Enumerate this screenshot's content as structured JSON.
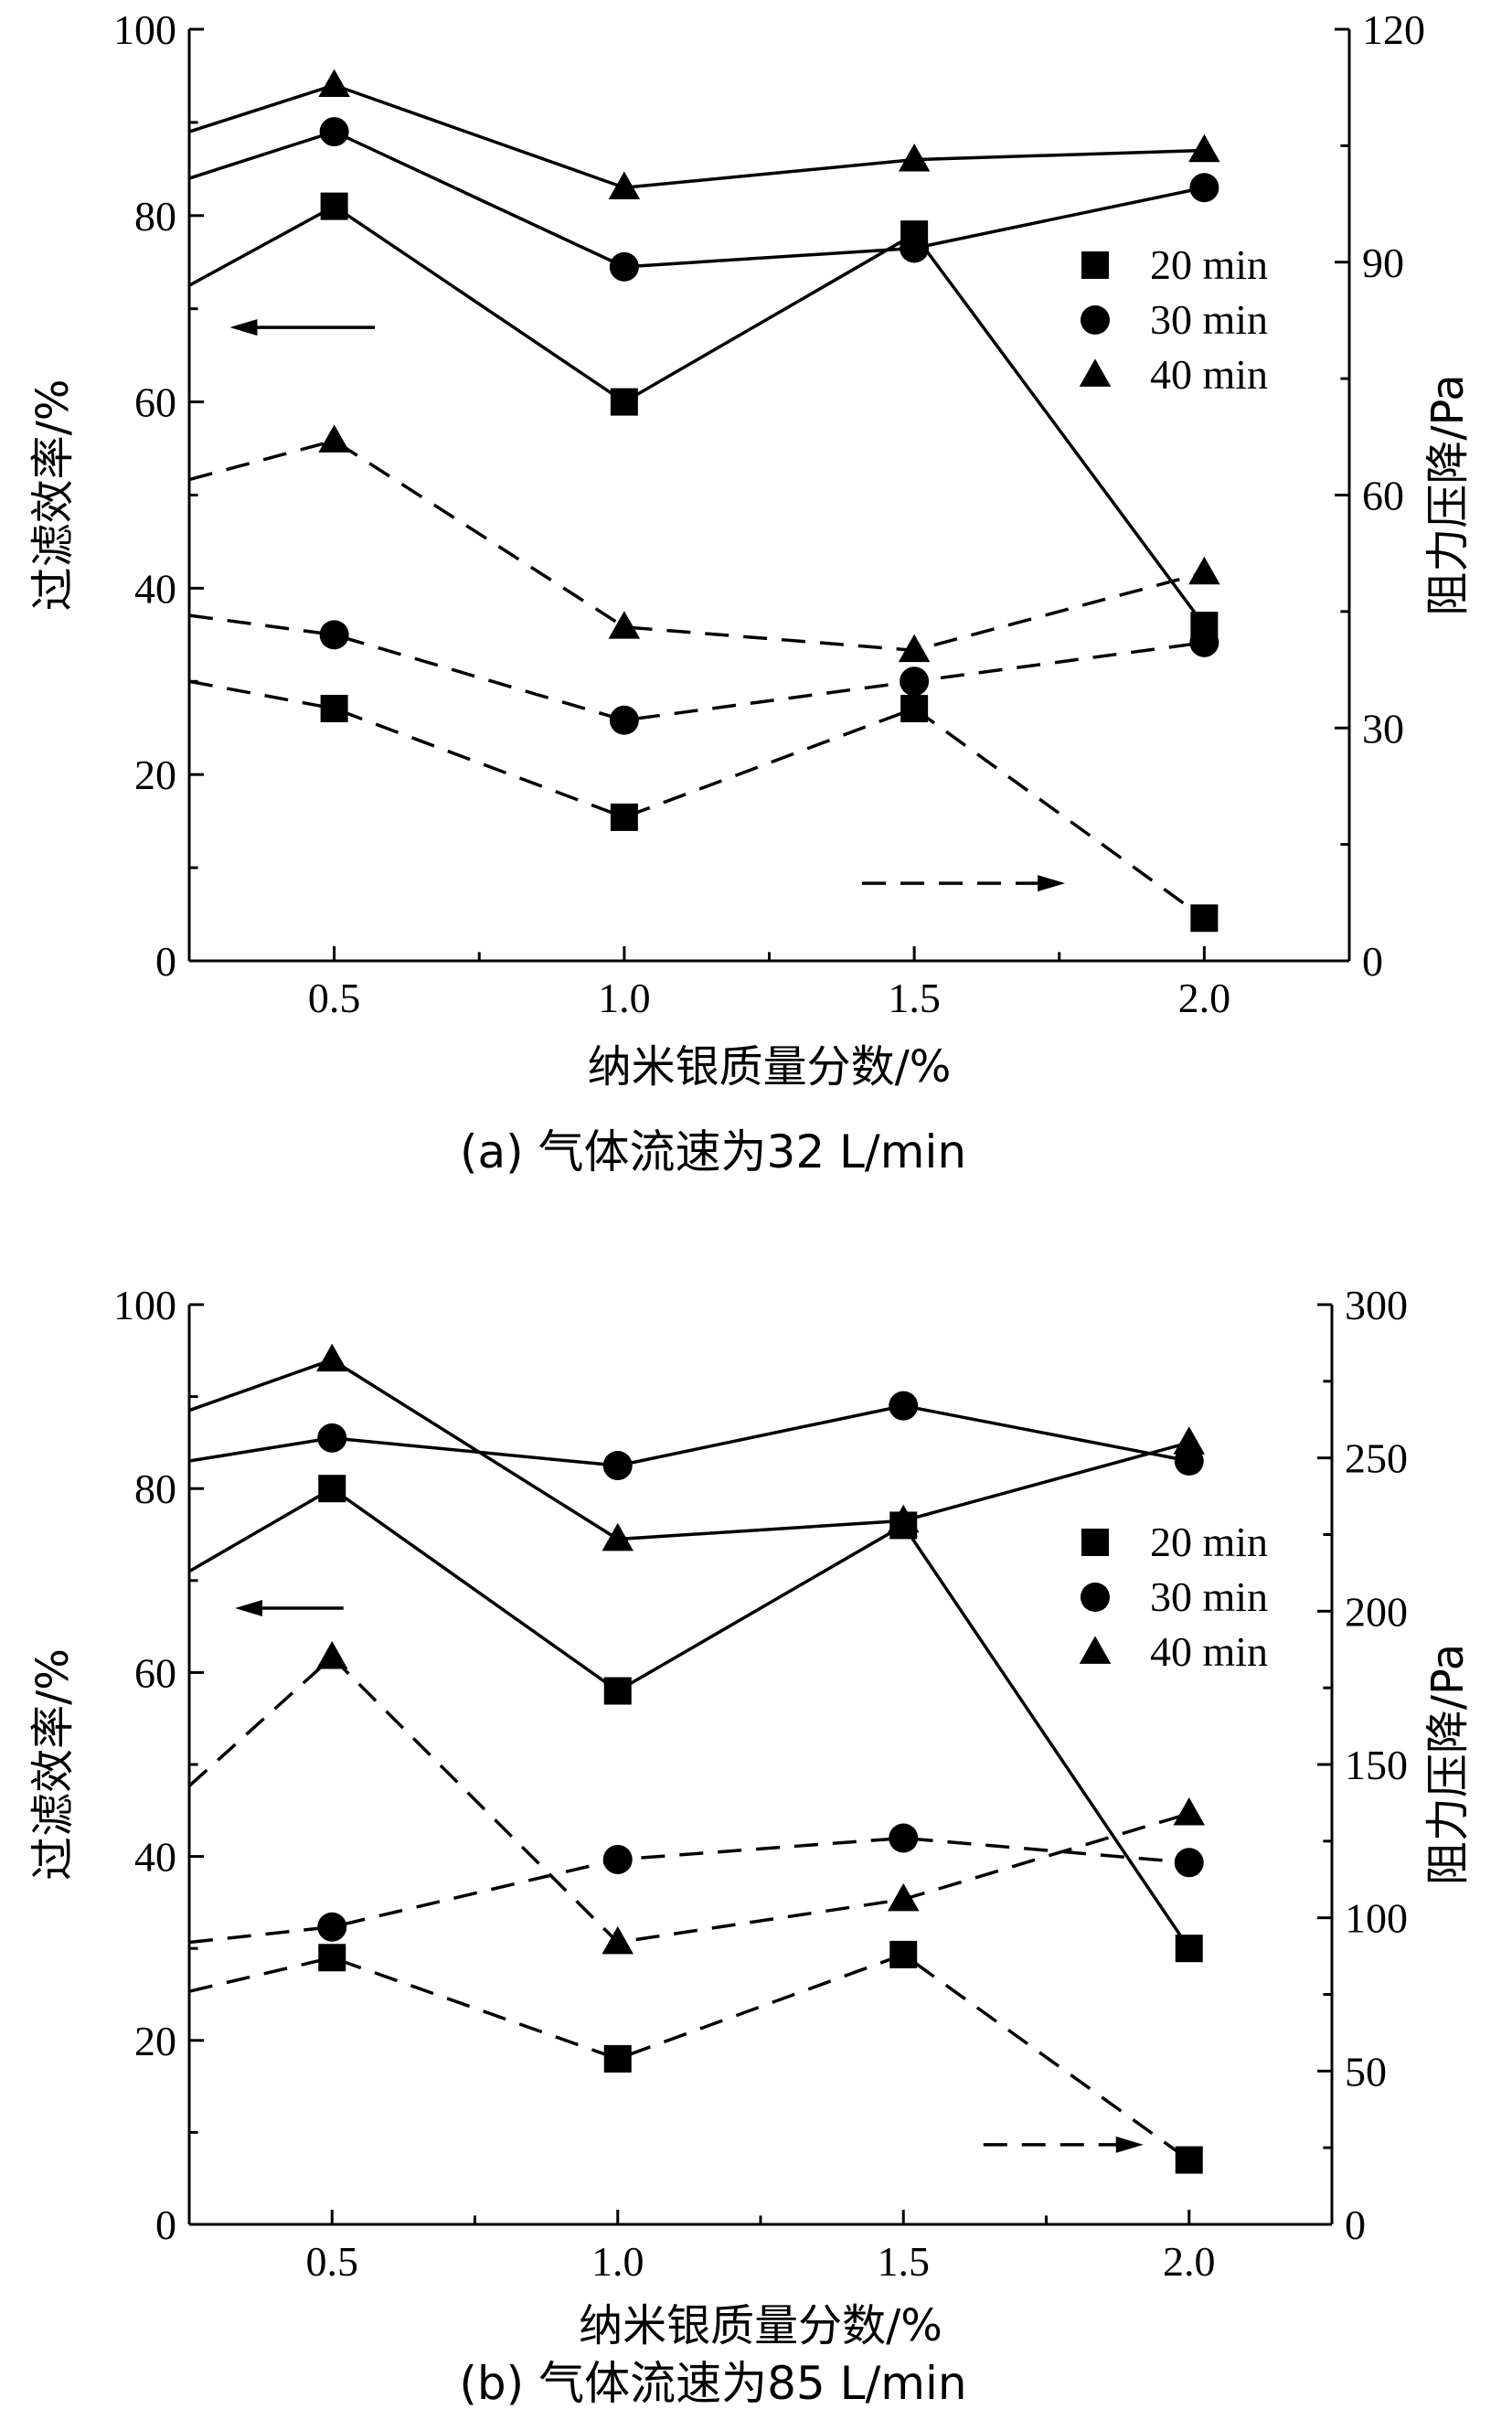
{
  "chart_data": [
    {
      "type": "line",
      "caption": "(a) 气体流速为32 L/min",
      "xlabel": "纳米银质量分数/%",
      "ylabel_left": "过滤效率/%",
      "ylabel_right": "阻力压降/Pa",
      "x_ticks": [
        "0.5",
        "1.0",
        "1.5",
        "2.0"
      ],
      "xlim": [
        0.25,
        2.25
      ],
      "ylim_left": [
        0,
        100
      ],
      "yticks_left": [
        0,
        20,
        40,
        60,
        80,
        100
      ],
      "ylim_right": [
        0,
        120
      ],
      "yticks_right": [
        0,
        30,
        60,
        90,
        120
      ],
      "legend": [
        {
          "marker": "square",
          "label": "20 min"
        },
        {
          "marker": "circle",
          "label": "30 min"
        },
        {
          "marker": "triangle",
          "label": "40 min"
        }
      ],
      "series": [
        {
          "name": "20 min",
          "axis": "left",
          "style": "solid",
          "marker": "square",
          "x": [
            0.25,
            0.5,
            1.0,
            1.5,
            2.0
          ],
          "values": [
            72.5,
            81,
            60,
            78,
            36
          ],
          "marked": [
            false,
            true,
            true,
            true,
            true
          ]
        },
        {
          "name": "30 min",
          "axis": "left",
          "style": "solid",
          "marker": "circle",
          "x": [
            0.25,
            0.5,
            1.0,
            1.5,
            2.0
          ],
          "values": [
            84,
            89,
            74.5,
            76.5,
            83
          ],
          "marked": [
            false,
            true,
            true,
            true,
            true
          ]
        },
        {
          "name": "40 min",
          "axis": "left",
          "style": "solid",
          "marker": "triangle",
          "x": [
            0.25,
            0.5,
            1.0,
            1.5,
            2.0
          ],
          "values": [
            89,
            94,
            83,
            86,
            87
          ],
          "marked": [
            false,
            true,
            true,
            true,
            true
          ]
        },
        {
          "name": "20 min",
          "axis": "right",
          "style": "dashed",
          "marker": "square",
          "x": [
            0.25,
            0.5,
            1.0,
            1.5,
            2.0
          ],
          "values": [
            36,
            32.5,
            18.5,
            32.5,
            5.5
          ],
          "marked": [
            false,
            true,
            true,
            true,
            true
          ]
        },
        {
          "name": "30 min",
          "axis": "right",
          "style": "dashed",
          "marker": "circle",
          "x": [
            0.25,
            0.5,
            1.0,
            1.5,
            2.0
          ],
          "values": [
            44.5,
            42,
            31,
            36,
            41
          ],
          "marked": [
            false,
            true,
            true,
            true,
            true
          ]
        },
        {
          "name": "40 min",
          "axis": "right",
          "style": "dashed",
          "marker": "triangle",
          "x": [
            0.25,
            0.5,
            1.0,
            1.5,
            2.0
          ],
          "values": [
            62,
            67,
            43,
            40,
            50
          ],
          "marked": [
            false,
            true,
            true,
            true,
            true
          ]
        }
      ],
      "arrows": [
        {
          "direction": "left",
          "axis": "left",
          "style": "solid",
          "x": [
            0.32,
            0.57
          ],
          "value": 68
        },
        {
          "direction": "right",
          "axis": "right",
          "style": "dashed",
          "x": [
            1.41,
            1.76
          ],
          "value": 10
        }
      ]
    },
    {
      "type": "line",
      "caption": "(b) 气体流速为85 L/min",
      "xlabel": "纳米银质量分数/%",
      "ylabel_left": "过滤效率/%",
      "ylabel_right": "阻力压降/Pa",
      "x_ticks": [
        "0.5",
        "1.0",
        "1.5",
        "2.0"
      ],
      "xlim": [
        0.25,
        2.25
      ],
      "ylim_left": [
        0,
        100
      ],
      "yticks_left": [
        0,
        20,
        40,
        60,
        80,
        100
      ],
      "ylim_right": [
        0,
        300
      ],
      "yticks_right": [
        0,
        50,
        100,
        150,
        200,
        250,
        300
      ],
      "legend": [
        {
          "marker": "square",
          "label": "20 min"
        },
        {
          "marker": "circle",
          "label": "30 min"
        },
        {
          "marker": "triangle",
          "label": "40 min"
        }
      ],
      "series": [
        {
          "name": "20 min",
          "axis": "left",
          "style": "solid",
          "marker": "square",
          "x": [
            0.25,
            0.5,
            1.0,
            1.5,
            2.0
          ],
          "values": [
            71,
            80,
            58,
            76,
            30
          ],
          "marked": [
            false,
            true,
            true,
            true,
            true
          ]
        },
        {
          "name": "30 min",
          "axis": "left",
          "style": "solid",
          "marker": "circle",
          "x": [
            0.25,
            0.5,
            1.0,
            1.5,
            2.0
          ],
          "values": [
            83,
            85.5,
            82.5,
            89,
            83
          ],
          "marked": [
            false,
            true,
            true,
            true,
            true
          ]
        },
        {
          "name": "40 min",
          "axis": "left",
          "style": "solid",
          "marker": "triangle",
          "x": [
            0.25,
            0.5,
            1.0,
            1.5,
            2.0
          ],
          "values": [
            88.5,
            94,
            74.5,
            76.5,
            85
          ],
          "marked": [
            false,
            true,
            true,
            true,
            true
          ]
        },
        {
          "name": "20 min",
          "axis": "right",
          "style": "dashed",
          "marker": "square",
          "x": [
            0.25,
            0.5,
            1.0,
            1.5,
            2.0
          ],
          "values": [
            76,
            87,
            54,
            88,
            21
          ],
          "marked": [
            false,
            true,
            true,
            true,
            true
          ]
        },
        {
          "name": "30 min",
          "axis": "right",
          "style": "dashed",
          "marker": "circle",
          "x": [
            0.25,
            0.5,
            1.0,
            1.5,
            2.0
          ],
          "values": [
            92,
            97,
            119,
            126,
            118
          ],
          "marked": [
            false,
            true,
            true,
            true,
            true
          ]
        },
        {
          "name": "40 min",
          "axis": "right",
          "style": "dashed",
          "marker": "triangle",
          "x": [
            0.25,
            0.5,
            1.0,
            1.5,
            2.0
          ],
          "values": [
            143,
            185,
            92,
            106,
            134
          ],
          "marked": [
            false,
            true,
            true,
            true,
            true
          ]
        }
      ],
      "arrows": [
        {
          "direction": "left",
          "axis": "left",
          "style": "solid",
          "x": [
            0.33,
            0.52
          ],
          "value": 67
        },
        {
          "direction": "right",
          "axis": "right",
          "style": "dashed",
          "x": [
            1.64,
            1.92
          ],
          "value": 26
        }
      ]
    }
  ]
}
